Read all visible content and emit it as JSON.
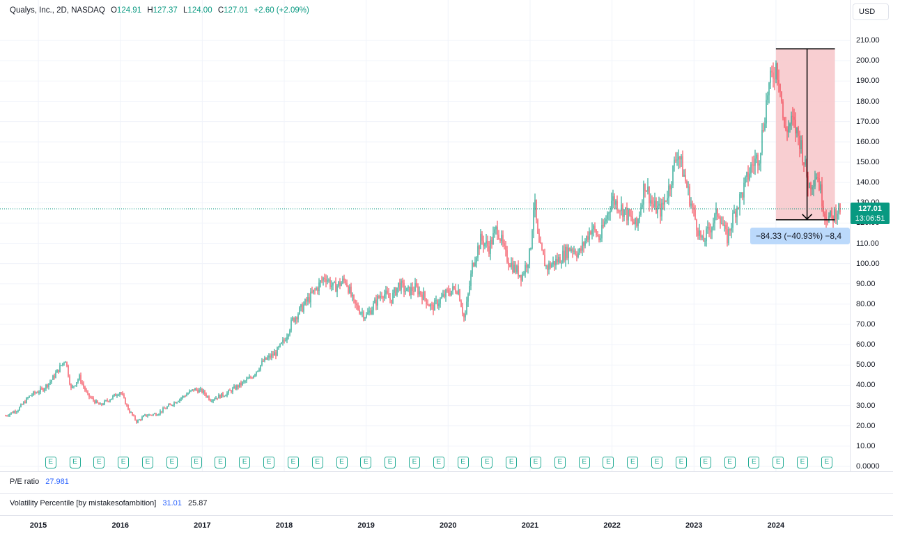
{
  "header": {
    "symbol": "Qualys, Inc., 2D, NASDAQ",
    "o_label": "O",
    "o_value": "124.91",
    "h_label": "H",
    "h_value": "127.37",
    "l_label": "L",
    "l_value": "124.00",
    "c_label": "C",
    "c_value": "127.01",
    "change": "+2.60 (+2.09%)",
    "currency_button": "USD"
  },
  "last_price": {
    "price": "127.01",
    "countdown": "13:06:51"
  },
  "measure": {
    "label": "−84.33 (−40.93%) −8,4"
  },
  "indicators": {
    "pe_label": "P/E ratio",
    "pe_value": "27.981",
    "vol_label": "Volatility Percentile [by mistakesofambition]",
    "vol_value1": "31.01",
    "vol_value2": "25.87"
  },
  "colors": {
    "up": "#089981",
    "down": "#f23645",
    "measure_fill": "#f7c5c9",
    "earnings": "#22ab94",
    "label_bg": "#bbd9fb"
  },
  "chart_data": {
    "type": "candlestick",
    "title": "Qualys, Inc., 2D, NASDAQ",
    "x": [
      "2015",
      "2016",
      "2017",
      "2018",
      "2019",
      "2020",
      "2021",
      "2022",
      "2023",
      "2024"
    ],
    "ylim": [
      0,
      220
    ],
    "y_ticks": [
      "0.0000",
      "10.00",
      "20.00",
      "30.00",
      "40.00",
      "50.00",
      "60.00",
      "70.00",
      "80.00",
      "90.00",
      "100.00",
      "110.00",
      "120.00",
      "130.00",
      "140.00",
      "150.00",
      "160.00",
      "170.00",
      "180.00",
      "190.00",
      "200.00",
      "210.00"
    ],
    "x_range": [
      2014.6,
      2024.8
    ],
    "price_path": [
      [
        2014.6,
        25
      ],
      [
        2014.75,
        28
      ],
      [
        2014.9,
        35
      ],
      [
        2015.05,
        38
      ],
      [
        2015.15,
        42
      ],
      [
        2015.25,
        48
      ],
      [
        2015.33,
        53
      ],
      [
        2015.4,
        38
      ],
      [
        2015.5,
        44
      ],
      [
        2015.6,
        35
      ],
      [
        2015.75,
        30
      ],
      [
        2015.9,
        34
      ],
      [
        2016.0,
        37
      ],
      [
        2016.1,
        28
      ],
      [
        2016.2,
        22
      ],
      [
        2016.3,
        25
      ],
      [
        2016.45,
        26
      ],
      [
        2016.6,
        30
      ],
      [
        2016.75,
        34
      ],
      [
        2016.9,
        38
      ],
      [
        2017.0,
        37
      ],
      [
        2017.1,
        33
      ],
      [
        2017.3,
        36
      ],
      [
        2017.45,
        40
      ],
      [
        2017.6,
        44
      ],
      [
        2017.75,
        52
      ],
      [
        2017.9,
        56
      ],
      [
        2018.0,
        62
      ],
      [
        2018.1,
        72
      ],
      [
        2018.25,
        80
      ],
      [
        2018.4,
        88
      ],
      [
        2018.5,
        94
      ],
      [
        2018.6,
        88
      ],
      [
        2018.75,
        92
      ],
      [
        2018.85,
        80
      ],
      [
        2019.0,
        74
      ],
      [
        2019.1,
        80
      ],
      [
        2019.2,
        86
      ],
      [
        2019.3,
        82
      ],
      [
        2019.4,
        90
      ],
      [
        2019.5,
        86
      ],
      [
        2019.6,
        88
      ],
      [
        2019.7,
        84
      ],
      [
        2019.8,
        78
      ],
      [
        2019.9,
        82
      ],
      [
        2020.0,
        86
      ],
      [
        2020.12,
        88
      ],
      [
        2020.2,
        72
      ],
      [
        2020.3,
        100
      ],
      [
        2020.4,
        112
      ],
      [
        2020.5,
        108
      ],
      [
        2020.6,
        118
      ],
      [
        2020.7,
        104
      ],
      [
        2020.8,
        98
      ],
      [
        2020.9,
        94
      ],
      [
        2021.0,
        105
      ],
      [
        2021.05,
        132
      ],
      [
        2021.1,
        110
      ],
      [
        2021.2,
        98
      ],
      [
        2021.35,
        102
      ],
      [
        2021.5,
        108
      ],
      [
        2021.6,
        105
      ],
      [
        2021.75,
        118
      ],
      [
        2021.85,
        112
      ],
      [
        2022.0,
        132
      ],
      [
        2022.15,
        126
      ],
      [
        2022.3,
        118
      ],
      [
        2022.4,
        140
      ],
      [
        2022.5,
        128
      ],
      [
        2022.6,
        126
      ],
      [
        2022.7,
        138
      ],
      [
        2022.8,
        156
      ],
      [
        2022.9,
        140
      ],
      [
        2023.0,
        124
      ],
      [
        2023.1,
        110
      ],
      [
        2023.2,
        118
      ],
      [
        2023.3,
        126
      ],
      [
        2023.4,
        112
      ],
      [
        2023.5,
        126
      ],
      [
        2023.6,
        136
      ],
      [
        2023.7,
        148
      ],
      [
        2023.8,
        154
      ],
      [
        2023.9,
        185
      ],
      [
        2024.0,
        198
      ],
      [
        2024.05,
        190
      ],
      [
        2024.1,
        165
      ],
      [
        2024.2,
        170
      ],
      [
        2024.3,
        160
      ],
      [
        2024.4,
        138
      ],
      [
        2024.5,
        145
      ],
      [
        2024.6,
        124
      ],
      [
        2024.68,
        122
      ],
      [
        2024.75,
        127
      ]
    ],
    "last_close": 127.01,
    "measurement": {
      "from_price": 205.9,
      "to_price": 121.6,
      "change": -84.33,
      "change_pct": -40.93
    },
    "earnings_markers_count": 33
  }
}
